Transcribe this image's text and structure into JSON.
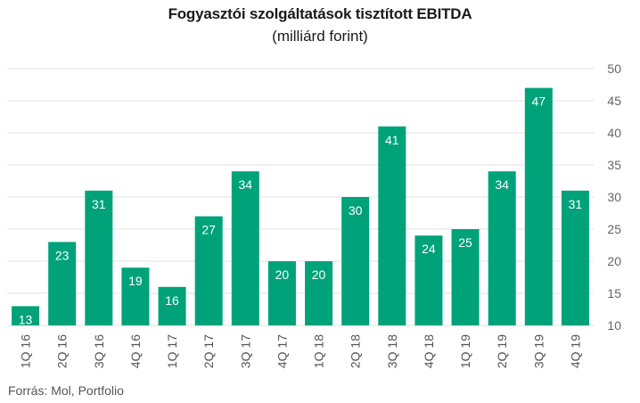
{
  "chart_data": {
    "type": "bar",
    "title": "Fogyasztói szolgáltatások tisztított EBITDA",
    "subtitle": "(milliárd forint)",
    "categories": [
      "1Q 16",
      "2Q 16",
      "3Q 16",
      "4Q 16",
      "1Q 17",
      "2Q 17",
      "3Q 17",
      "4Q 17",
      "1Q 18",
      "2Q 18",
      "3Q 18",
      "4Q 18",
      "1Q 19",
      "2Q 19",
      "3Q 19",
      "4Q 19"
    ],
    "values": [
      13,
      23,
      31,
      19,
      16,
      27,
      34,
      20,
      20,
      30,
      41,
      24,
      25,
      34,
      47,
      31
    ],
    "ylim": [
      10,
      50
    ],
    "yticks": [
      10,
      15,
      20,
      25,
      30,
      35,
      40,
      45,
      50
    ],
    "grid": true,
    "bar_color": "#00a27a",
    "label_color": "#ffffff",
    "grid_color": "#e2e2e2"
  },
  "source": "Forrás: Mol, Portfolio"
}
